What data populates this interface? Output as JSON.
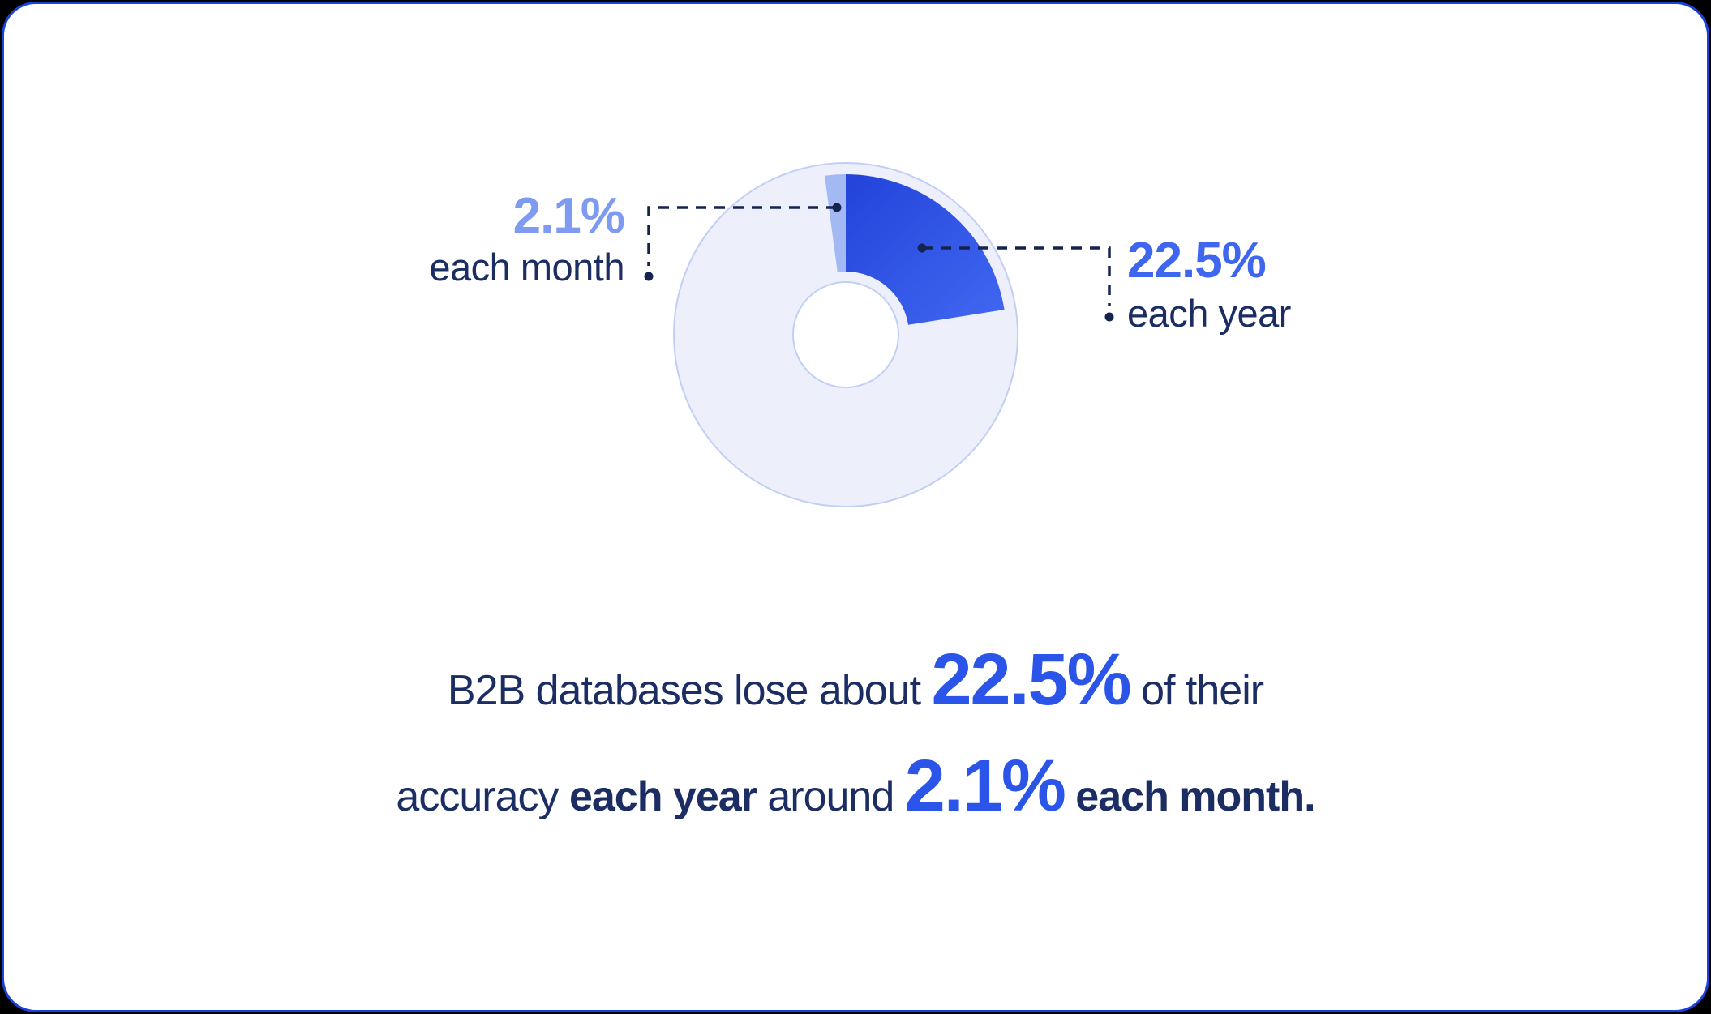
{
  "chart_data": {
    "type": "pie",
    "subtype": "donut",
    "title": "",
    "legend_position": "callout-labels",
    "grid": false,
    "slices": [
      {
        "label": "each year",
        "value_pct": 22.5
      },
      {
        "label": "each month",
        "value_pct": 2.1
      },
      {
        "label": "remainder",
        "value_pct": 75.4
      }
    ],
    "annotations": [
      {
        "value": "2.1%",
        "label": "each month",
        "side": "left"
      },
      {
        "value": "22.5%",
        "label": "each year",
        "side": "right"
      }
    ]
  },
  "callouts": {
    "month": {
      "value": "2.1%",
      "label": "each month"
    },
    "year": {
      "value": "22.5%",
      "label": "each year"
    }
  },
  "caption": {
    "line1": [
      "B2B databases lose about ",
      "22.5%",
      " of their"
    ],
    "line2": [
      "accuracy ",
      "each year",
      " around ",
      "2.1%",
      " each month."
    ]
  },
  "colors": {
    "card_border": "#1A41D8",
    "accent_blue": "#2B55E8",
    "label_blue": "#3F66EF",
    "light_blue": "#7E9BF1",
    "navy": "#1B2D63",
    "leader": "#15234F",
    "ring_fill": "#EDF0FB",
    "ring_stroke": "#C2CFF5",
    "hole_fill": "#FFFFFF",
    "wedge_year_start": "#2343D9",
    "wedge_year_end": "#4168F2",
    "wedge_month": "#A2B9F3"
  }
}
